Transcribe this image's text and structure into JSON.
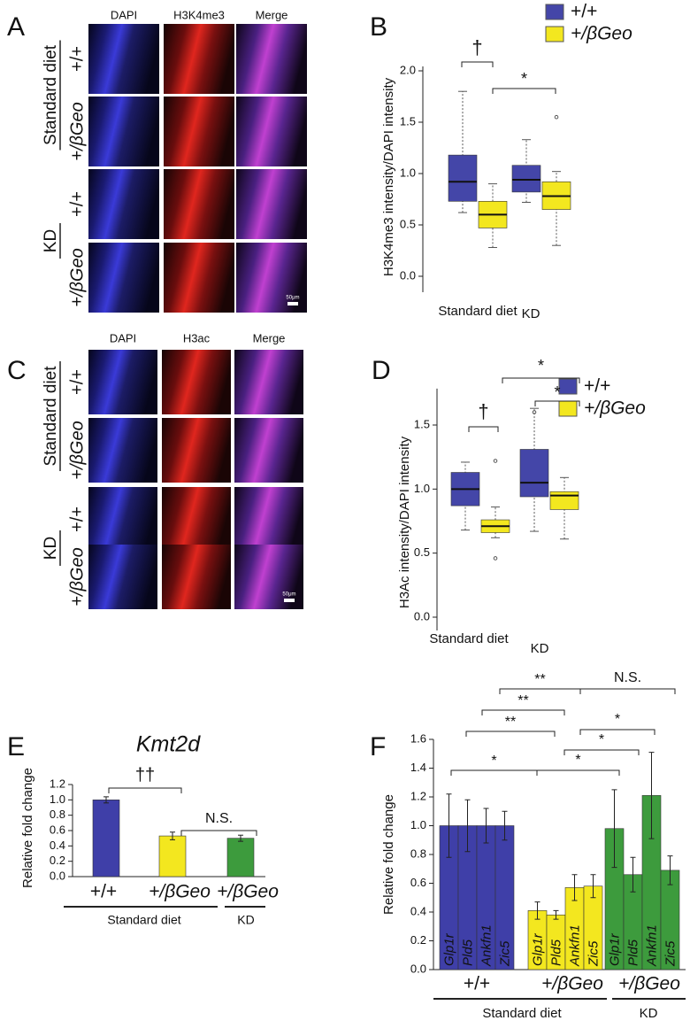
{
  "panels": [
    "A",
    "B",
    "C",
    "D",
    "E",
    "F"
  ],
  "image_panels": [
    {
      "columns": [
        "DAPI",
        "H3K4me3",
        "Merge"
      ],
      "groups": [
        {
          "label": "Standard diet",
          "rows": [
            "+/+",
            "+/βGeo"
          ]
        },
        {
          "label": "KD",
          "rows": [
            "+/+",
            "+/βGeo"
          ]
        }
      ],
      "scale_bar": "50μm"
    },
    {
      "columns": [
        "DAPI",
        "H3ac",
        "Merge"
      ],
      "groups": [
        {
          "label": "Standard diet",
          "rows": [
            "+/+",
            "+/βGeo"
          ]
        },
        {
          "label": "KD",
          "rows": [
            "+/+",
            "+/βGeo"
          ]
        }
      ],
      "scale_bar": "50μm"
    }
  ],
  "chart_data": [
    {
      "type": "box",
      "y_label": "H3K4me3 intensity/DAPI intensity",
      "categories": [
        "Standard diet",
        "KD"
      ],
      "series": [
        {
          "name": "+/+",
          "color": "#4446a8",
          "boxes": [
            {
              "whislo": 0.62,
              "q1": 0.73,
              "med": 0.92,
              "q3": 1.18,
              "whishi": 1.8,
              "fliers": []
            },
            {
              "whislo": 0.72,
              "q1": 0.82,
              "med": 0.94,
              "q3": 1.08,
              "whishi": 1.33,
              "fliers": []
            }
          ]
        },
        {
          "name": "+/βGeo",
          "color": "#f3e71f",
          "boxes": [
            {
              "whislo": 0.28,
              "q1": 0.47,
              "med": 0.6,
              "q3": 0.73,
              "whishi": 0.9,
              "fliers": []
            },
            {
              "whislo": 0.3,
              "q1": 0.65,
              "med": 0.78,
              "q3": 0.92,
              "whishi": 1.02,
              "fliers": [
                1.55
              ]
            }
          ]
        }
      ],
      "annotations": [
        "†",
        "*"
      ],
      "ylim": [
        0,
        2
      ],
      "yticks": [
        {
          "value": 0,
          "label": "0.0"
        },
        0.5,
        {
          "value": 1,
          "label": "1.0"
        },
        1.5,
        {
          "value": 2,
          "label": "2.0"
        }
      ]
    },
    {
      "type": "box",
      "y_label": "H3Ac intensity/DAPI intensity",
      "categories": [
        "Standard diet",
        "KD"
      ],
      "series": [
        {
          "name": "+/+",
          "color": "#4446a8",
          "boxes": [
            {
              "whislo": 0.68,
              "q1": 0.87,
              "med": 1.0,
              "q3": 1.13,
              "whishi": 1.21,
              "fliers": []
            },
            {
              "whislo": 0.67,
              "q1": 0.94,
              "med": 1.05,
              "q3": 1.31,
              "whishi": 1.63,
              "fliers": [
                1.6
              ]
            }
          ]
        },
        {
          "name": "+/βGeo",
          "color": "#f3e71f",
          "boxes": [
            {
              "whislo": 0.62,
              "q1": 0.66,
              "med": 0.71,
              "q3": 0.76,
              "whishi": 0.86,
              "fliers": [
                1.22,
                0.46
              ]
            },
            {
              "whislo": 0.61,
              "q1": 0.84,
              "med": 0.95,
              "q3": 0.98,
              "whishi": 1.09,
              "fliers": []
            }
          ]
        }
      ],
      "annotations": [
        "†",
        "*",
        "*"
      ],
      "ylim": [
        0,
        1.75
      ],
      "yticks": [
        {
          "value": 0,
          "label": "0.0"
        },
        0.5,
        {
          "value": 1,
          "label": "1.0"
        },
        1.5
      ]
    },
    {
      "type": "bar",
      "title": "Kmt2d",
      "y_label": "Relative fold change",
      "categories": [
        "+/+",
        "+/βGeo",
        "+/βGeo"
      ],
      "values": [
        1.0,
        0.53,
        0.5
      ],
      "errors": [
        0.04,
        0.05,
        0.04
      ],
      "colors": [
        "#3f3fa8",
        "#f3e71f",
        "#3d9b3d"
      ],
      "groups": [
        "Standard diet",
        "KD"
      ],
      "annotations": [
        "††",
        "N.S."
      ],
      "ylim": [
        0,
        1.2
      ],
      "yticks": [
        {
          "value": 0,
          "label": "0.0"
        },
        0.2,
        0.4,
        0.6,
        0.8,
        {
          "value": 1,
          "label": "1.0"
        },
        1.2
      ]
    },
    {
      "type": "bar",
      "y_label": "Relative fold change",
      "categories": [
        "Glp1r",
        "Pld5",
        "Ankfn1",
        "Zic5"
      ],
      "series": [
        {
          "name": "+/+",
          "color": "#3f3fa8",
          "values": [
            1.0,
            1.0,
            1.0,
            1.0
          ],
          "errors": [
            0.22,
            0.18,
            0.12,
            0.1
          ]
        },
        {
          "name": "+/βGeo",
          "color": "#f3e71f",
          "values": [
            0.41,
            0.38,
            0.57,
            0.58
          ],
          "errors": [
            0.06,
            0.03,
            0.09,
            0.08
          ]
        },
        {
          "name": "+/βGeo",
          "color": "#3d9b3d",
          "values": [
            0.98,
            0.66,
            1.21,
            0.69
          ],
          "errors": [
            0.27,
            0.12,
            0.3,
            0.1
          ]
        }
      ],
      "groups": [
        "Standard diet",
        "KD"
      ],
      "annotations": [
        "**",
        "**",
        "**",
        "*",
        "N.S.",
        "*",
        "*",
        "*"
      ],
      "ylim": [
        0,
        1.6
      ],
      "yticks": [
        {
          "value": 0,
          "label": "0.0"
        },
        0.2,
        0.4,
        0.6,
        0.8,
        {
          "value": 1,
          "label": "1.0"
        },
        1.2,
        1.4,
        1.6
      ]
    }
  ]
}
